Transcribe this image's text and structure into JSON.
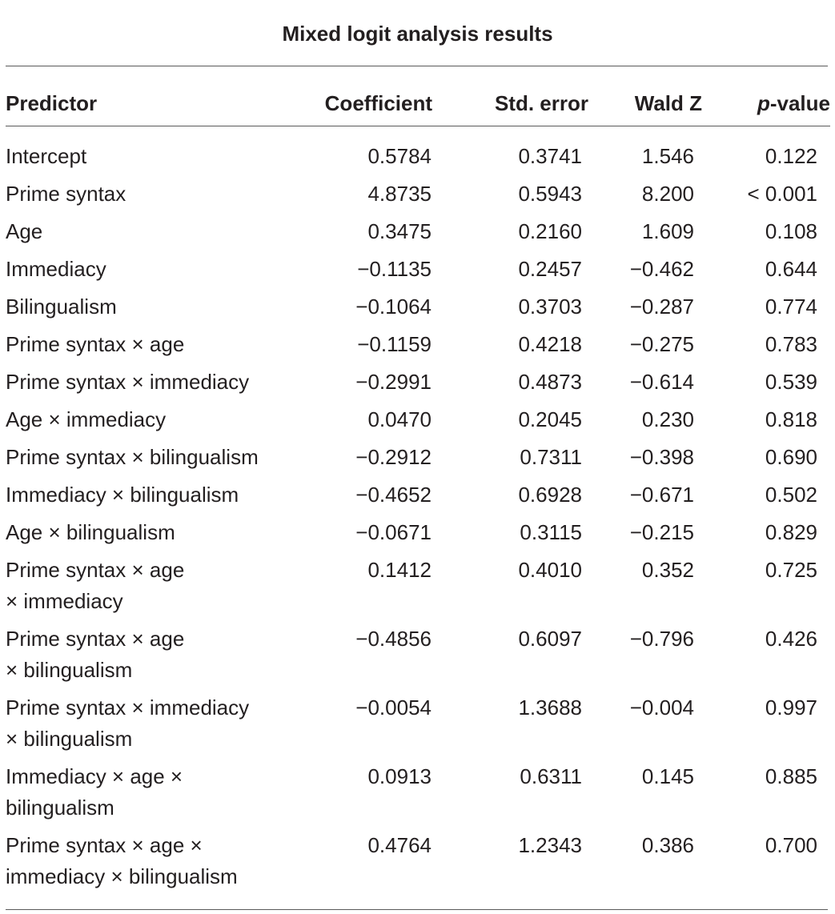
{
  "table": {
    "title": "Mixed logit analysis results",
    "headers": {
      "predictor": "Predictor",
      "coefficient": "Coefficient",
      "std_error": "Std. error",
      "wald_z": "Wald Z",
      "p_italic": "p",
      "p_suffix": "-value"
    },
    "rows": [
      {
        "predictor": "Intercept",
        "coefficient": "0.5784",
        "std_error": "0.3741",
        "wald_z": "1.546",
        "p_value": "0.122"
      },
      {
        "predictor": "Prime syntax",
        "coefficient": "4.8735",
        "std_error": "0.5943",
        "wald_z": "8.200",
        "p_value": "< 0.001"
      },
      {
        "predictor": "Age",
        "coefficient": "0.3475",
        "std_error": "0.2160",
        "wald_z": "1.609",
        "p_value": "0.108"
      },
      {
        "predictor": "Immediacy",
        "coefficient": "−0.1135",
        "std_error": "0.2457",
        "wald_z": "−0.462",
        "p_value": "0.644"
      },
      {
        "predictor": "Bilingualism",
        "coefficient": "−0.1064",
        "std_error": "0.3703",
        "wald_z": "−0.287",
        "p_value": "0.774"
      },
      {
        "predictor": "Prime syntax × age",
        "coefficient": "−0.1159",
        "std_error": "0.4218",
        "wald_z": "−0.275",
        "p_value": "0.783"
      },
      {
        "predictor": "Prime syntax × immediacy",
        "coefficient": "−0.2991",
        "std_error": "0.4873",
        "wald_z": "−0.614",
        "p_value": "0.539"
      },
      {
        "predictor": "Age × immediacy",
        "coefficient": "0.0470",
        "std_error": "0.2045",
        "wald_z": "0.230",
        "p_value": "0.818"
      },
      {
        "predictor": "Prime syntax × bilingualism",
        "coefficient": "−0.2912",
        "std_error": "0.7311",
        "wald_z": "−0.398",
        "p_value": "0.690"
      },
      {
        "predictor": "Immediacy × bilingualism",
        "coefficient": "−0.4652",
        "std_error": "0.6928",
        "wald_z": "−0.671",
        "p_value": "0.502"
      },
      {
        "predictor": "Age × bilingualism",
        "coefficient": "−0.0671",
        "std_error": "0.3115",
        "wald_z": "−0.215",
        "p_value": "0.829"
      },
      {
        "predictor": "Prime syntax × age × immediacy",
        "coefficient": "0.1412",
        "std_error": "0.4010",
        "wald_z": "0.352",
        "p_value": "0.725"
      },
      {
        "predictor": "Prime syntax × age × bilingualism",
        "coefficient": "−0.4856",
        "std_error": "0.6097",
        "wald_z": "−0.796",
        "p_value": "0.426"
      },
      {
        "predictor": "Prime syntax × immediacy × bilingualism",
        "coefficient": "−0.0054",
        "std_error": "1.3688",
        "wald_z": "−0.004",
        "p_value": "0.997"
      },
      {
        "predictor": "Immediacy × age × bilingualism",
        "coefficient": "0.0913",
        "std_error": "0.6311",
        "wald_z": "0.145",
        "p_value": "0.885"
      },
      {
        "predictor": "Prime syntax × age × immediacy × bilingualism",
        "coefficient": "0.4764",
        "std_error": "1.2343",
        "wald_z": "0.386",
        "p_value": "0.700"
      }
    ]
  }
}
